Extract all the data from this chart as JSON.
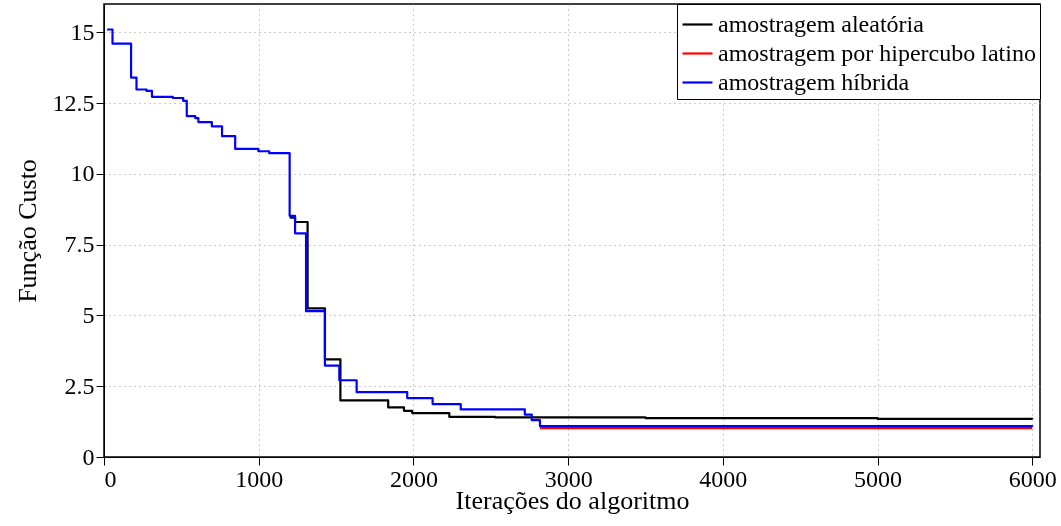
{
  "chart_data": {
    "type": "step",
    "xlabel": "Iterações do algoritmo",
    "ylabel": "Função Custo",
    "xlim": [
      0,
      6050
    ],
    "ylim": [
      0,
      16
    ],
    "xticks": [
      0,
      1000,
      2000,
      3000,
      4000,
      5000,
      6000
    ],
    "yticks": [
      0,
      2.5,
      5,
      7.5,
      10,
      12.5,
      15
    ],
    "grid": true,
    "legend": "top right",
    "line_style": "solid",
    "marker": "none",
    "series": [
      {
        "name": "amostragem aleatória",
        "color": "#000000",
        "x": [
          1200,
          1235,
          1316,
          1428,
          1528,
          1837,
          1939,
          1992,
          2232,
          2528,
          3500,
          5000,
          6000
        ],
        "values": [
          8.45,
          8.3,
          5.25,
          3.45,
          2.0,
          1.75,
          1.63,
          1.55,
          1.42,
          1.4,
          1.37,
          1.35,
          1.33
        ]
      },
      {
        "name": "amostragem por hipercubo latino",
        "color": "#ff0000",
        "x": [
          2818,
          6000
        ],
        "values": [
          1.02,
          1.02
        ]
      },
      {
        "name": "amostragem híbrida",
        "color": "#0000ff",
        "x": [
          20,
          55,
          175,
          210,
          275,
          310,
          445,
          512,
          535,
          590,
          610,
          697,
          763,
          848,
          998,
          1068,
          1200,
          1235,
          1306,
          1428,
          1521,
          1633,
          1960,
          2124,
          2306,
          2720,
          2765,
          2818,
          6000
        ],
        "values": [
          15.1,
          14.6,
          13.4,
          12.98,
          12.93,
          12.72,
          12.68,
          12.58,
          12.04,
          11.97,
          11.83,
          11.68,
          11.33,
          10.88,
          10.8,
          10.73,
          8.52,
          7.9,
          5.15,
          3.23,
          2.71,
          2.29,
          2.08,
          1.87,
          1.68,
          1.5,
          1.3,
          1.09,
          1.07
        ]
      }
    ]
  }
}
